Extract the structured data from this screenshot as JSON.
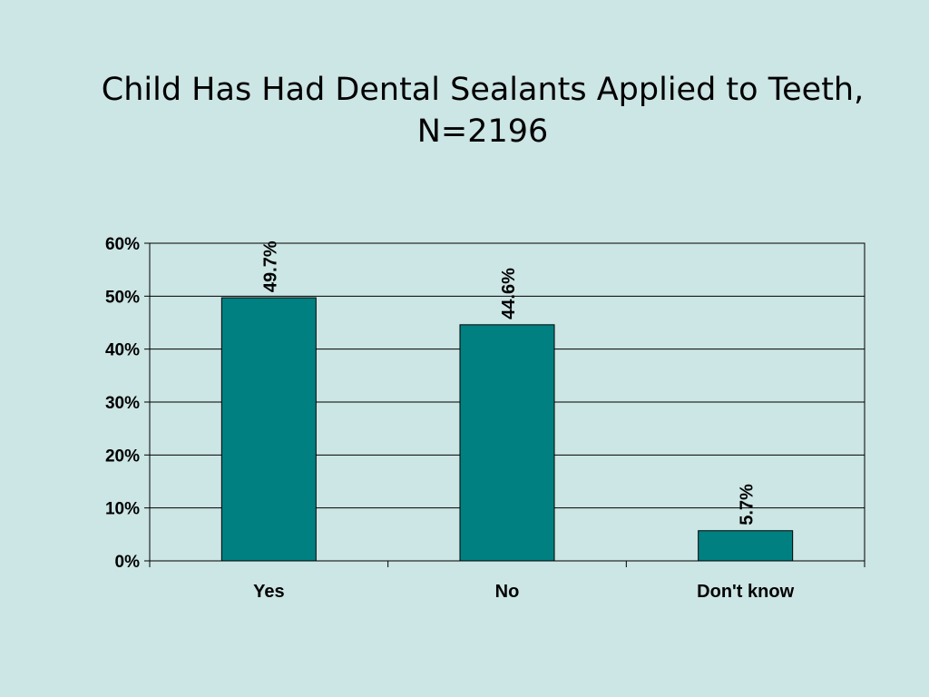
{
  "slide": {
    "title_line1": "Child Has Had Dental Sealants Applied to Teeth,",
    "title_line2": "N=2196"
  },
  "colors": {
    "background": "#cce5e5",
    "bar": "#008080",
    "gridline": "#000000"
  },
  "chart_data": {
    "type": "bar",
    "title": "Child Has Had Dental Sealants Applied to Teeth, N=2196",
    "categories": [
      "Yes",
      "No",
      "Don't know"
    ],
    "values": [
      49.7,
      44.6,
      5.7
    ],
    "data_labels": [
      "49.7%",
      "44.6%",
      "5.7%"
    ],
    "y_ticks": [
      0,
      10,
      20,
      30,
      40,
      50,
      60
    ],
    "y_tick_labels": [
      "0%",
      "10%",
      "20%",
      "30%",
      "40%",
      "50%",
      "60%"
    ],
    "ylim": [
      0,
      60
    ],
    "grid": true,
    "legend": "none"
  }
}
